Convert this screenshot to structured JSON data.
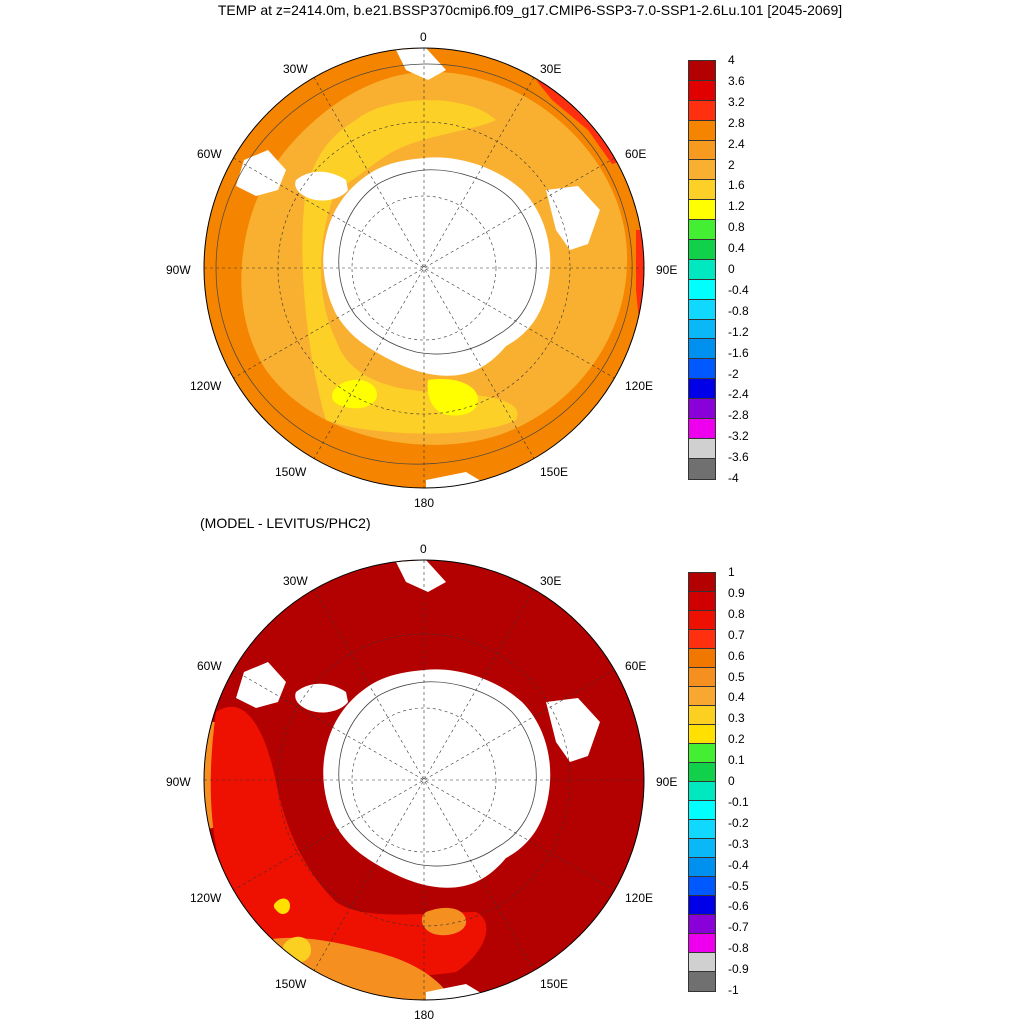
{
  "title": "TEMP at z=2414.0m, b.e21.BSSP370cmip6.f09_g17.CMIP6-SSP3-7.0-SSP1-2.6Lu.101 [2045-2069]",
  "subtitle": "(MODEL - LEVITUS/PHC2)",
  "map_labels": {
    "lon0": "0",
    "lon30e": "30E",
    "lon60e": "60E",
    "lon90e": "90E",
    "lon120e": "120E",
    "lon150e": "150E",
    "lon180": "180",
    "lon150w": "150W",
    "lon120w": "120W",
    "lon90w": "90W",
    "lon60w": "60W",
    "lon30w": "30W"
  },
  "colorbar_top": {
    "ticks": [
      "4",
      "3.6",
      "3.2",
      "2.8",
      "2.4",
      "2",
      "1.6",
      "1.2",
      "0.8",
      "0.4",
      "0",
      "-0.4",
      "-0.8",
      "-1.2",
      "-1.6",
      "-2",
      "-2.4",
      "-2.8",
      "-3.2",
      "-3.6",
      "-4"
    ],
    "colors": [
      "#b30000",
      "#e00000",
      "#ff3010",
      "#f58400",
      "#f79a20",
      "#f9b030",
      "#fdd028",
      "#ffff00",
      "#44ee33",
      "#11d04a",
      "#00e8c0",
      "#00ffff",
      "#10d8ff",
      "#0ab8f8",
      "#0090f0",
      "#0058ff",
      "#0000e8",
      "#8a00d8",
      "#ee00ee",
      "#d0d0d0",
      "#707070"
    ]
  },
  "colorbar_bottom": {
    "ticks": [
      "1",
      "0.9",
      "0.8",
      "0.7",
      "0.6",
      "0.5",
      "0.4",
      "0.3",
      "0.2",
      "0.1",
      "0",
      "-0.1",
      "-0.2",
      "-0.3",
      "-0.4",
      "-0.5",
      "-0.6",
      "-0.7",
      "-0.8",
      "-0.9",
      "-1"
    ],
    "colors": [
      "#b30000",
      "#d00000",
      "#ee1000",
      "#ff3010",
      "#f07800",
      "#f59020",
      "#f8a830",
      "#fcd020",
      "#ffe000",
      "#44ee33",
      "#11d04a",
      "#00e8c0",
      "#00ffff",
      "#10d8ff",
      "#0ab8f8",
      "#0090f0",
      "#0058ff",
      "#0000e8",
      "#8a00d8",
      "#ee00ee",
      "#d0d0d0",
      "#707070"
    ]
  },
  "map_colors": {
    "ocean_top_outer": "#f58400",
    "ocean_top_mid": "#f9b030",
    "ocean_top_inner": "#fdd028",
    "ocean_top_core": "#ffff00",
    "ocean_bottom": "#b30000",
    "ocean_bottom_red": "#ee1000",
    "ocean_bottom_orange": "#f59020",
    "land": "#ffffff"
  }
}
